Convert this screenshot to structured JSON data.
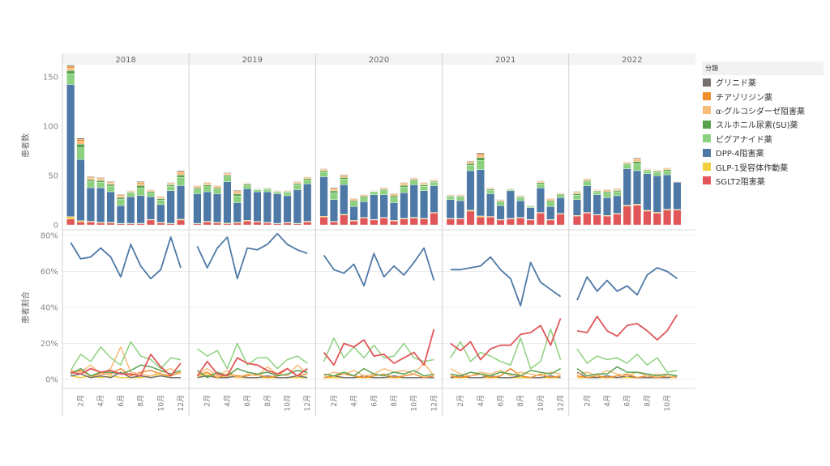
{
  "legend": {
    "title": "分類",
    "items": [
      {
        "label": "グリニド薬",
        "color": "#76706c"
      },
      {
        "label": "チアゾリジン薬",
        "color": "#f28e2b"
      },
      {
        "label": "α-グルコシダーゼ阻害薬",
        "color": "#f7bc7a"
      },
      {
        "label": "スルホニル尿素(SU)薬",
        "color": "#59a14f"
      },
      {
        "label": "ビグアナイド薬",
        "color": "#8cd17d"
      },
      {
        "label": "DPP-4阻害薬",
        "color": "#4e79a7"
      },
      {
        "label": "GLP-1受容体作動薬",
        "color": "#f1ce3c"
      },
      {
        "label": "SGLT2阻害薬",
        "color": "#e15759"
      }
    ]
  },
  "chart_data": {
    "type": "bar",
    "panel_headers": [
      "2018",
      "2019",
      "2020",
      "2021",
      "2022"
    ],
    "month_tick_labels": [
      "2月",
      "4月",
      "6月",
      "8月",
      "10月",
      "12月"
    ],
    "month_tick_labels_2022": [
      "2月",
      "4月",
      "6月",
      "8月",
      "10月"
    ],
    "top": {
      "ylabel": "患者数",
      "ylim": [
        0,
        160
      ],
      "yticks": [
        {
          "v": 0,
          "label": "0"
        },
        {
          "v": 50,
          "label": "50"
        },
        {
          "v": 100,
          "label": "100"
        },
        {
          "v": 150,
          "label": "150"
        }
      ],
      "stack_order": [
        "SGLT2阻害薬",
        "GLP-1受容体作動薬",
        "DPP-4阻害薬",
        "ビグアナイド薬",
        "スルホニル尿素(SU)薬",
        "α-グルコシダーゼ阻害薬",
        "チアゾリジン薬",
        "グリニド薬"
      ],
      "years": [
        {
          "year": "2018",
          "totals": [
            162,
            88,
            49,
            48,
            44,
            31,
            35,
            44,
            36,
            29,
            43,
            55
          ],
          "sglt2": [
            6,
            3,
            3,
            2,
            2,
            1,
            1,
            1,
            5,
            2,
            1,
            5
          ],
          "dpp4": [
            134,
            62,
            34,
            35,
            31,
            18,
            27,
            28,
            23,
            18,
            33,
            34
          ]
        },
        {
          "year": "2019",
          "totals": [
            40,
            43,
            40,
            53,
            35,
            43,
            37,
            38,
            35,
            35,
            44,
            49
          ],
          "sglt2": [
            1,
            3,
            2,
            1,
            2,
            4,
            3,
            2,
            1,
            2,
            1,
            3
          ],
          "dpp4": [
            30,
            30,
            29,
            42,
            20,
            32,
            30,
            31,
            30,
            27,
            34,
            38
          ]
        },
        {
          "year": "2020",
          "totals": [
            57,
            38,
            51,
            27,
            31,
            35,
            38,
            32,
            43,
            48,
            43,
            46
          ],
          "sglt2": [
            8,
            3,
            10,
            4,
            7,
            5,
            7,
            4,
            6,
            7,
            6,
            12
          ],
          "dpp4": [
            40,
            22,
            30,
            14,
            16,
            25,
            23,
            18,
            26,
            33,
            28,
            27
          ]
        },
        {
          "year": "2021",
          "totals": [
            31,
            31,
            65,
            73,
            38,
            26,
            37,
            30,
            20,
            45,
            27,
            33
          ],
          "sglt2": [
            6,
            6,
            14,
            8,
            8,
            5,
            6,
            7,
            5,
            12,
            5,
            11
          ],
          "dpp4": [
            19,
            18,
            40,
            47,
            23,
            14,
            28,
            17,
            12,
            25,
            13,
            16
          ]
        },
        {
          "year": "2022",
          "totals": [
            34,
            47,
            36,
            36,
            37,
            64,
            68,
            57,
            56,
            58,
            44
          ],
          "sglt2": [
            9,
            12,
            10,
            9,
            11,
            19,
            20,
            14,
            12,
            15,
            15
          ],
          "dpp4": [
            16,
            27,
            20,
            18,
            18,
            37,
            34,
            37,
            37,
            35,
            28
          ]
        }
      ]
    },
    "bottom": {
      "ylabel": "患者割合",
      "ylim": [
        0,
        80
      ],
      "yticks": [
        {
          "v": 0,
          "label": "0%"
        },
        {
          "v": 20,
          "label": "20%"
        },
        {
          "v": 40,
          "label": "40%"
        },
        {
          "v": 60,
          "label": "60%"
        },
        {
          "v": 80,
          "label": "80%"
        }
      ],
      "years": [
        {
          "year": "2018",
          "series": {
            "DPP-4阻害薬": [
              76,
              67,
              68,
              73,
              68,
              57,
              75,
              63,
              56,
              61,
              79,
              62
            ],
            "SGLT2阻害薬": [
              4,
              3,
              6,
              4,
              5,
              3,
              3,
              2,
              14,
              7,
              2,
              9
            ],
            "ビグアナイド薬": [
              5,
              14,
              10,
              18,
              12,
              8,
              21,
              13,
              11,
              6,
              12,
              11
            ],
            "スルホニル尿素(SU)薬": [
              3,
              6,
              2,
              4,
              4,
              3,
              5,
              8,
              7,
              5,
              3,
              5
            ],
            "α-グルコシダーゼ阻害薬": [
              5,
              4,
              8,
              3,
              6,
              18,
              4,
              3,
              2,
              4,
              6,
              3
            ],
            "チアゾリジン薬": [
              4,
              5,
              2,
              3,
              3,
              6,
              2,
              4,
              5,
              3,
              2,
              4
            ],
            "グリニド薬": [
              2,
              3,
              1,
              2,
              1,
              4,
              1,
              2,
              1,
              2,
              1,
              1
            ],
            "GLP-1受容体作動薬": [
              2,
              1,
              2,
              1,
              2,
              1,
              1,
              1,
              2,
              3,
              1,
              1
            ]
          }
        },
        {
          "year": "2019",
          "series": {
            "DPP-4阻害薬": [
              74,
              62,
              73,
              79,
              56,
              73,
              72,
              75,
              81,
              75,
              72,
              70
            ],
            "SGLT2阻害薬": [
              2,
              10,
              3,
              2,
              12,
              9,
              8,
              5,
              3,
              6,
              2,
              6
            ],
            "ビグアナイド薬": [
              17,
              13,
              16,
              6,
              20,
              8,
              12,
              12,
              6,
              11,
              13,
              9
            ],
            "スルホニル尿素(SU)薬": [
              5,
              1,
              4,
              2,
              6,
              4,
              3,
              4,
              2,
              3,
              5,
              4
            ],
            "α-グルコシダーゼ阻害薬": [
              2,
              6,
              2,
              5,
              1,
              3,
              2,
              7,
              3,
              2,
              8,
              3
            ],
            "チアゾリジン薬": [
              2,
              4,
              1,
              3,
              2,
              2,
              3,
              1,
              2,
              6,
              2,
              3
            ],
            "グリニド薬": [
              1,
              2,
              1,
              1,
              2,
              1,
              1,
              2,
              1,
              1,
              2,
              1
            ],
            "GLP-1受容体作動薬": [
              1,
              3,
              1,
              2,
              1,
              1,
              1,
              1,
              1,
              1,
              1,
              1
            ]
          }
        },
        {
          "year": "2020",
          "series": {
            "DPP-4阻害薬": [
              69,
              61,
              59,
              64,
              52,
              70,
              57,
              63,
              58,
              65,
              73,
              55
            ],
            "SGLT2阻害薬": [
              15,
              8,
              20,
              18,
              22,
              13,
              14,
              9,
              12,
              15,
              8,
              28
            ],
            "ビグアナイド薬": [
              10,
              23,
              12,
              18,
              12,
              19,
              12,
              13,
              20,
              12,
              10,
              11
            ],
            "スルホニル尿素(SU)薬": [
              3,
              2,
              4,
              2,
              6,
              3,
              2,
              4,
              3,
              5,
              2,
              3
            ],
            "α-グルコシダーゼ阻害薬": [
              2,
              4,
              3,
              5,
              2,
              3,
              6,
              4,
              5,
              3,
              9,
              2
            ],
            "チアゾリジン薬": [
              1,
              2,
              3,
              2,
              1,
              2,
              3,
              1,
              2,
              3,
              1,
              2
            ],
            "グリニド薬": [
              1,
              2,
              1,
              1,
              2,
              1,
              1,
              2,
              1,
              1,
              1,
              1
            ],
            "GLP-1受容体作動薬": [
              1,
              1,
              1,
              1,
              1,
              1,
              1,
              1,
              1,
              1,
              1,
              1
            ]
          }
        },
        {
          "year": "2021",
          "series": {
            "DPP-4阻害薬": [
              61,
              61,
              62,
              63,
              68,
              61,
              56,
              41,
              65,
              54,
              50,
              46
            ],
            "SGLT2阻害薬": [
              20,
              16,
              21,
              11,
              17,
              19,
              19,
              25,
              26,
              30,
              19,
              34
            ],
            "ビグアナイド薬": [
              12,
              21,
              10,
              15,
              13,
              10,
              8,
              23,
              6,
              10,
              28,
              11
            ],
            "スルホニル尿素(SU)薬": [
              3,
              2,
              4,
              3,
              2,
              4,
              3,
              2,
              5,
              4,
              3,
              6
            ],
            "α-グルコシダーゼ阻害薬": [
              6,
              3,
              2,
              4,
              3,
              5,
              2,
              4,
              3,
              2,
              4,
              3
            ],
            "チアゾリジン薬": [
              2,
              1,
              2,
              3,
              1,
              2,
              6,
              2,
              1,
              3,
              1,
              2
            ],
            "グリニド薬": [
              1,
              2,
              1,
              1,
              2,
              1,
              1,
              2,
              1,
              1,
              2,
              1
            ],
            "GLP-1受容体作動薬": [
              1,
              1,
              1,
              1,
              1,
              1,
              1,
              1,
              1,
              1,
              1,
              1
            ]
          }
        },
        {
          "year": "2022",
          "series": {
            "DPP-4阻害薬": [
              44,
              57,
              49,
              55,
              49,
              52,
              47,
              58,
              62,
              60,
              56
            ],
            "SGLT2阻害薬": [
              27,
              26,
              35,
              27,
              24,
              30,
              31,
              27,
              22,
              27,
              36
            ],
            "ビグアナイド薬": [
              17,
              9,
              13,
              11,
              12,
              9,
              14,
              8,
              12,
              4,
              5
            ],
            "スルホニル尿素(SU)薬": [
              6,
              2,
              3,
              3,
              7,
              4,
              4,
              3,
              2,
              3,
              2
            ],
            "α-グルコシダーゼ阻害薬": [
              3,
              4,
              2,
              5,
              3,
              2,
              4,
              2,
              3,
              2,
              1
            ],
            "チアゾリジン薬": [
              2,
              1,
              2,
              1,
              2,
              3,
              1,
              2,
              1,
              2,
              1
            ],
            "グリニド薬": [
              4,
              1,
              1,
              2,
              1,
              2,
              1,
              1,
              1,
              1,
              2
            ],
            "GLP-1受容体作動薬": [
              1,
              1,
              1,
              1,
              1,
              1,
              1,
              1,
              1,
              1,
              1
            ]
          }
        }
      ]
    }
  }
}
